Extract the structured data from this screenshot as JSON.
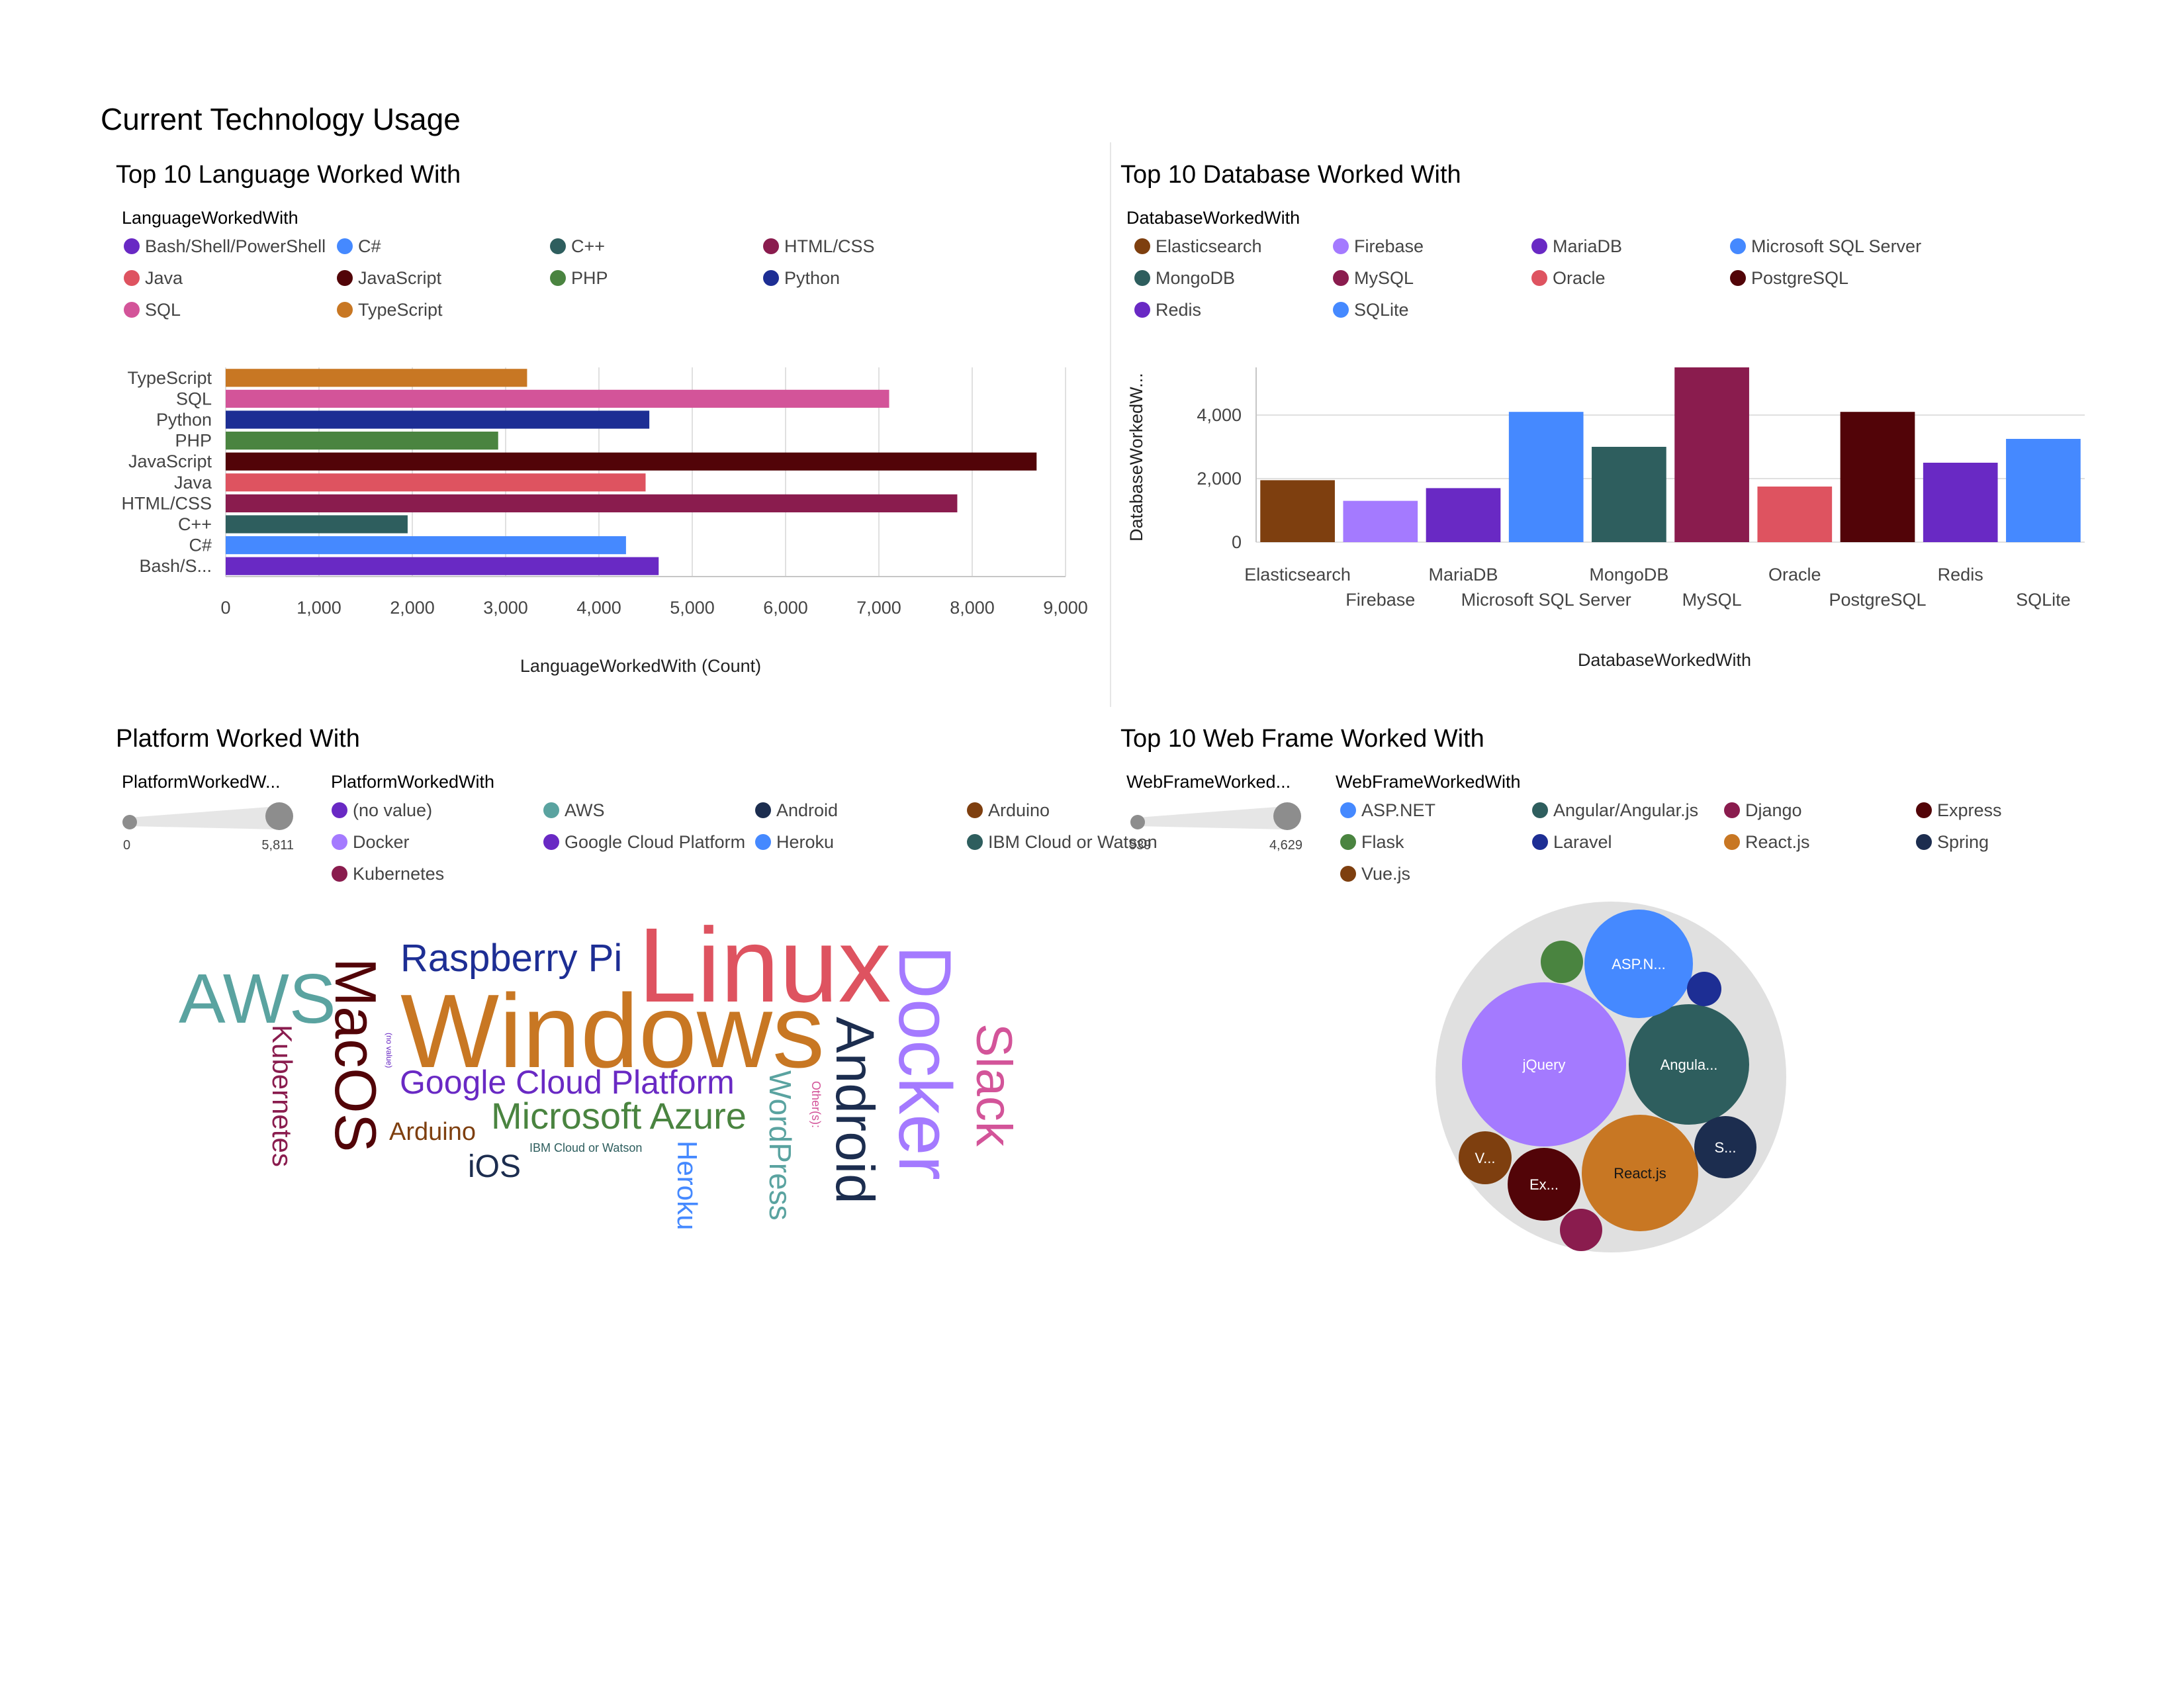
{
  "page": {
    "title": "Current Technology Usage"
  },
  "colors": {
    "c1": "#6929c4",
    "c2": "#4589ff",
    "c3": "#2e5e5e",
    "c4": "#8a1c4e",
    "c5": "#de5360",
    "c6": "#520408",
    "c7": "#4a8440",
    "c8": "#1d2e94",
    "c9": "#d35499",
    "c10": "#c87723",
    "c11": "#7e3f0f",
    "c12": "#a47aff",
    "c13": "#1c2d4f",
    "c14": "#5aa3a0",
    "muted": "#8d8d8d",
    "cluster": "#e0e0e0"
  },
  "languages": {
    "title": "Top 10 Language Worked With",
    "legend_title": "LanguageWorkedWith",
    "legend": [
      {
        "label": "Bash/Shell/PowerShell",
        "color": "#6929c4"
      },
      {
        "label": "C#",
        "color": "#4589ff"
      },
      {
        "label": "C++",
        "color": "#2e5e5e"
      },
      {
        "label": "HTML/CSS",
        "color": "#8a1c4e"
      },
      {
        "label": "Java",
        "color": "#de5360"
      },
      {
        "label": "JavaScript",
        "color": "#520408"
      },
      {
        "label": "PHP",
        "color": "#4a8440"
      },
      {
        "label": "Python",
        "color": "#1d2e94"
      },
      {
        "label": "SQL",
        "color": "#d35499"
      },
      {
        "label": "TypeScript",
        "color": "#c87723"
      }
    ],
    "x_ticks": [
      "0",
      "1,000",
      "2,000",
      "3,000",
      "4,000",
      "5,000",
      "6,000",
      "7,000",
      "8,000",
      "9,000"
    ],
    "xlabel": "LanguageWorkedWith (Count)"
  },
  "databases": {
    "title": "Top 10 Database Worked With",
    "legend_title": "DatabaseWorkedWith",
    "legend": [
      {
        "label": "Elasticsearch",
        "color": "#7e3f0f"
      },
      {
        "label": "Firebase",
        "color": "#a47aff"
      },
      {
        "label": "MariaDB",
        "color": "#6929c4"
      },
      {
        "label": "Microsoft SQL Server",
        "color": "#4589ff"
      },
      {
        "label": "MongoDB",
        "color": "#2e5e5e"
      },
      {
        "label": "MySQL",
        "color": "#8a1c4e"
      },
      {
        "label": "Oracle",
        "color": "#de5360"
      },
      {
        "label": "PostgreSQL",
        "color": "#520408"
      },
      {
        "label": "Redis",
        "color": "#6929c4"
      },
      {
        "label": "SQLite",
        "color": "#4589ff"
      }
    ],
    "y_ticks": [
      "0",
      "2,000",
      "4,000"
    ],
    "ylabel": "DatabaseWorkedW...",
    "xlabel": "DatabaseWorkedWith"
  },
  "platforms": {
    "title": "Platform Worked With",
    "slider": {
      "title": "PlatformWorkedW...",
      "min_label": "0",
      "max_label": "5,811"
    },
    "legend_title": "PlatformWorkedWith",
    "legend": [
      {
        "label": "(no value)",
        "color": "#6929c4"
      },
      {
        "label": "AWS",
        "color": "#5aa3a0"
      },
      {
        "label": "Android",
        "color": "#1c2d4f"
      },
      {
        "label": "Arduino",
        "color": "#7e3f0f"
      },
      {
        "label": "Docker",
        "color": "#a47aff"
      },
      {
        "label": "Google Cloud Platform",
        "color": "#6929c4"
      },
      {
        "label": "Heroku",
        "color": "#4589ff"
      },
      {
        "label": "IBM Cloud or Watson",
        "color": "#2e5e5e"
      },
      {
        "label": "Kubernetes",
        "color": "#8a1c4e"
      }
    ]
  },
  "webframes": {
    "title": "Top 10 Web Frame Worked With",
    "slider": {
      "title": "WebFrameWorked...",
      "min_label": "939",
      "max_label": "4,629"
    },
    "legend_title": "WebFrameWorkedWith",
    "legend": [
      {
        "label": "ASP.NET",
        "color": "#4589ff"
      },
      {
        "label": "Angular/Angular.js",
        "color": "#2e5e5e"
      },
      {
        "label": "Django",
        "color": "#8a1c4e"
      },
      {
        "label": "Express",
        "color": "#520408"
      },
      {
        "label": "Flask",
        "color": "#4a8440"
      },
      {
        "label": "Laravel",
        "color": "#1d2e94"
      },
      {
        "label": "React.js",
        "color": "#c87723"
      },
      {
        "label": "Spring",
        "color": "#1c2d4f"
      },
      {
        "label": "Vue.js",
        "color": "#7e3f0f"
      }
    ]
  },
  "chart_data": [
    {
      "type": "bar",
      "orientation": "horizontal",
      "title": "Top 10 Language Worked With",
      "xlabel": "LanguageWorkedWith (Count)",
      "categories": [
        "TypeScript",
        "SQL",
        "Python",
        "PHP",
        "JavaScript",
        "Java",
        "HTML/CSS",
        "C++",
        "C#",
        "Bash/S..."
      ],
      "values": [
        3230,
        7110,
        4540,
        2920,
        8690,
        4500,
        7840,
        1950,
        4290,
        4640
      ],
      "colors": [
        "#c87723",
        "#d35499",
        "#1d2e94",
        "#4a8440",
        "#520408",
        "#de5360",
        "#8a1c4e",
        "#2e5e5e",
        "#4589ff",
        "#6929c4"
      ],
      "xlim": [
        0,
        9000
      ],
      "grid": true,
      "legend_position": "top"
    },
    {
      "type": "bar",
      "title": "Top 10 Database Worked With",
      "xlabel": "DatabaseWorkedWith",
      "ylabel": "DatabaseWorkedW...",
      "categories": [
        "Elasticsearch",
        "Firebase",
        "MariaDB",
        "Microsoft SQL Server",
        "MongoDB",
        "MySQL",
        "Oracle",
        "PostgreSQL",
        "Redis",
        "SQLite"
      ],
      "values": [
        1950,
        1300,
        1700,
        4100,
        3000,
        5500,
        1750,
        4100,
        2500,
        3250
      ],
      "colors": [
        "#7e3f0f",
        "#a47aff",
        "#6929c4",
        "#4589ff",
        "#2e5e5e",
        "#8a1c4e",
        "#de5360",
        "#520408",
        "#6929c4",
        "#4589ff"
      ],
      "ylim": [
        0,
        5500
      ],
      "grid": true,
      "legend_position": "top"
    },
    {
      "type": "wordcloud",
      "title": "Platform Worked With",
      "words": [
        {
          "text": "Linux",
          "value": 5811,
          "color": "#de5360",
          "rotate": 0
        },
        {
          "text": "Windows",
          "value": 5800,
          "color": "#c87723",
          "rotate": 0
        },
        {
          "text": "Docker",
          "value": 3900,
          "color": "#a47aff",
          "rotate": 90
        },
        {
          "text": "AWS",
          "value": 2900,
          "color": "#5aa3a0",
          "rotate": 0
        },
        {
          "text": "MacOS",
          "value": 2600,
          "color": "#520408",
          "rotate": 90
        },
        {
          "text": "Android",
          "value": 2600,
          "color": "#1c2d4f",
          "rotate": 90
        },
        {
          "text": "Raspberry Pi",
          "value": 1800,
          "color": "#1d2e94",
          "rotate": 0
        },
        {
          "text": "Slack",
          "value": 2000,
          "color": "#d35499",
          "rotate": 90
        },
        {
          "text": "Google Cloud Platform",
          "value": 1800,
          "color": "#6929c4",
          "rotate": 0
        },
        {
          "text": "Microsoft Azure",
          "value": 1800,
          "color": "#4a8440",
          "rotate": 0
        },
        {
          "text": "WordPress",
          "value": 1500,
          "color": "#5aa3a0",
          "rotate": 90
        },
        {
          "text": "Kubernetes",
          "value": 1300,
          "color": "#8a1c4e",
          "rotate": 90
        },
        {
          "text": "iOS",
          "value": 1500,
          "color": "#1c2d4f",
          "rotate": 0
        },
        {
          "text": "Heroku",
          "value": 1400,
          "color": "#4589ff",
          "rotate": 90
        },
        {
          "text": "Arduino",
          "value": 1300,
          "color": "#7e3f0f",
          "rotate": 0
        },
        {
          "text": "IBM Cloud or Watson",
          "value": 300,
          "color": "#2e5e5e",
          "rotate": 0
        },
        {
          "text": "Other(s):",
          "value": 300,
          "color": "#d35499",
          "rotate": 90
        },
        {
          "text": "(no value)",
          "value": 150,
          "color": "#6929c4",
          "rotate": 90
        }
      ]
    },
    {
      "type": "bubble",
      "title": "Top 10 Web Frame Worked With",
      "bubbles": [
        {
          "name": "jQuery",
          "label": "jQuery",
          "value": 4629,
          "color": "#a47aff"
        },
        {
          "name": "React.js",
          "label": "React.js",
          "value": 3400,
          "color": "#c87723"
        },
        {
          "name": "Angular/Angular.js",
          "label": "Angula...",
          "value": 2450,
          "color": "#2e5e5e"
        },
        {
          "name": "ASP.NET",
          "label": "ASP.N...",
          "value": 3000,
          "color": "#4589ff"
        },
        {
          "name": "Express",
          "label": "Ex...",
          "value": 1450,
          "color": "#520408"
        },
        {
          "name": "Spring",
          "label": "S...",
          "value": 1100,
          "color": "#1c2d4f"
        },
        {
          "name": "Vue.js",
          "label": "V...",
          "value": 1000,
          "color": "#7e3f0f"
        },
        {
          "name": "Flask",
          "label": "",
          "value": 939,
          "color": "#4a8440"
        },
        {
          "name": "Django",
          "label": "",
          "value": 939,
          "color": "#8a1c4e"
        },
        {
          "name": "Laravel",
          "label": "",
          "value": 939,
          "color": "#1d2e94"
        }
      ]
    }
  ]
}
